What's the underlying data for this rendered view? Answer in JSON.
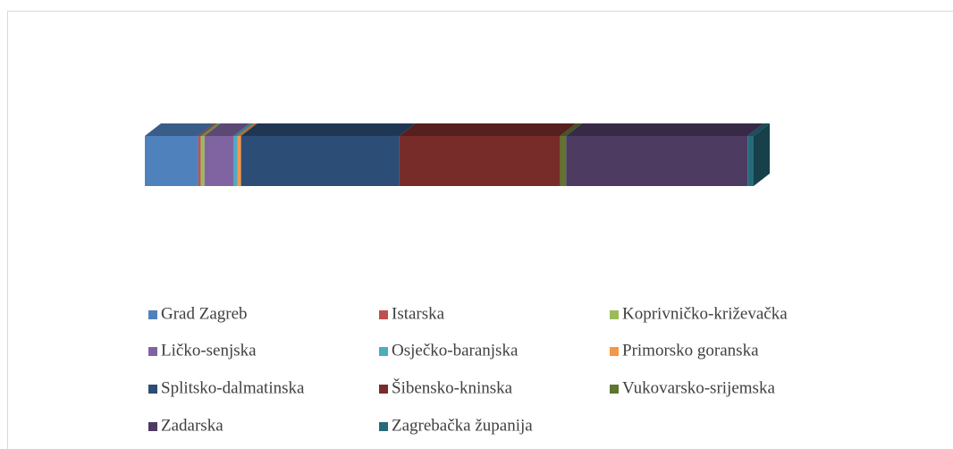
{
  "chart_data": {
    "type": "bar",
    "stacked": true,
    "orientation": "horizontal",
    "legend": "bottom",
    "series": [
      {
        "name": "Grad Zagreb",
        "color": "#4f81bd",
        "values": [
          8.8
        ]
      },
      {
        "name": "Istarska",
        "color": "#c0504d",
        "values": [
          0.4
        ]
      },
      {
        "name": "Koprivničko-križevačka",
        "color": "#9bbb59",
        "values": [
          0.6
        ]
      },
      {
        "name": "Ličko-senjska",
        "color": "#8064a2",
        "values": [
          4.8
        ]
      },
      {
        "name": "Osječko-baranjska",
        "color": "#4bacc6",
        "values": [
          0.6
        ]
      },
      {
        "name": "Primorsko goranska",
        "color": "#f79646",
        "values": [
          0.6
        ]
      },
      {
        "name": "Splitsko-dalmatinska",
        "color": "#2c4d75",
        "values": [
          26
        ]
      },
      {
        "name": "Šibensko-kninska",
        "color": "#772c2a",
        "values": [
          26.4
        ]
      },
      {
        "name": "Vukovarsko-srijemska",
        "color": "#5f7530",
        "values": [
          1
        ]
      },
      {
        "name": "Zadarska",
        "color": "#4d3b62",
        "values": [
          29.8
        ]
      },
      {
        "name": "Zagrebačka županija",
        "color": "#276a7c",
        "values": [
          1
        ]
      }
    ]
  }
}
